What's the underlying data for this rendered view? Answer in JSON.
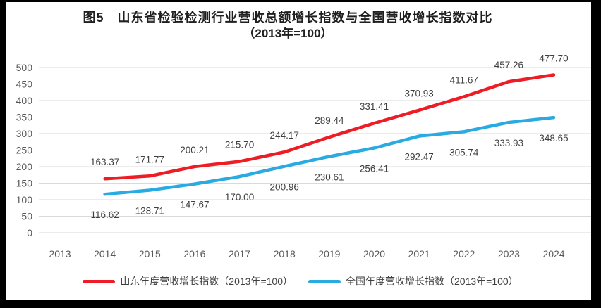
{
  "window": {
    "background": "#000000",
    "card_background": "#ffffff"
  },
  "title": {
    "line1": "图5　山东省检验检测行业营收总额增长指数与全国营收增长指数对比",
    "line2": "（2013年=100）"
  },
  "chart_data": {
    "type": "line",
    "categories": [
      "2013",
      "2014",
      "2015",
      "2016",
      "2017",
      "2018",
      "2019",
      "2020",
      "2021",
      "2022",
      "2023",
      "2024"
    ],
    "series": [
      {
        "name": "山东年度营收增长指数（2013年=100）",
        "color": "#ee1c25",
        "label_position": "above",
        "values": [
          null,
          163.37,
          171.77,
          200.21,
          215.7,
          244.17,
          289.44,
          331.41,
          370.93,
          411.67,
          457.26,
          477.7
        ]
      },
      {
        "name": "全国年度营收增长指数（2013年=100）",
        "color": "#29abe2",
        "label_position": "below",
        "values": [
          null,
          116.62,
          128.71,
          147.67,
          170.0,
          200.96,
          230.61,
          256.41,
          292.47,
          305.74,
          333.93,
          348.65
        ]
      }
    ],
    "ylim": [
      0,
      500
    ],
    "ytick_step": 50,
    "y_ticks": [
      "0",
      "50",
      "100",
      "150",
      "200",
      "250",
      "300",
      "350",
      "400",
      "450",
      "500"
    ],
    "grid": "horizontal",
    "legend_position": "bottom",
    "value_label_decimals": 2,
    "gridline_color": "#d9d9d9",
    "axis_text_color": "#595959",
    "value_label_color": "#3f3f3f"
  }
}
